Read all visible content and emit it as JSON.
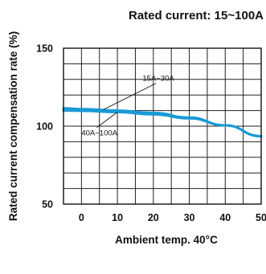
{
  "chart_data": {
    "type": "line",
    "title": "Rated current:  15~100A",
    "xlabel": "Ambient temp. 40°C",
    "ylabel": "Rated current compensation rate (%)",
    "x_ticks": [
      "0",
      "10",
      "20",
      "30",
      "40",
      "50"
    ],
    "y_ticks": [
      "50",
      "100",
      "150"
    ],
    "xlim": [
      -5,
      50
    ],
    "ylim": [
      50,
      150
    ],
    "grid": true,
    "series_color": "#1a9ad6",
    "series": [
      {
        "x": [
          -5,
          0,
          10,
          20,
          30,
          40,
          50
        ],
        "y": [
          110,
          109.8,
          109,
          107.5,
          105,
          100.5,
          93.5
        ]
      },
      {
        "x": [
          -5,
          0,
          10,
          20,
          30,
          40,
          50
        ],
        "y": [
          111.5,
          111,
          110,
          108.5,
          105.5,
          100.5,
          93.5
        ]
      }
    ],
    "annotations": [
      {
        "text": "15A~30A",
        "x": 17,
        "y": 129,
        "target_x": 6,
        "target_y": 110.5
      },
      {
        "text": "40A~100A",
        "x": 0,
        "y": 94,
        "target_x": 10,
        "target_y": 109
      }
    ]
  }
}
